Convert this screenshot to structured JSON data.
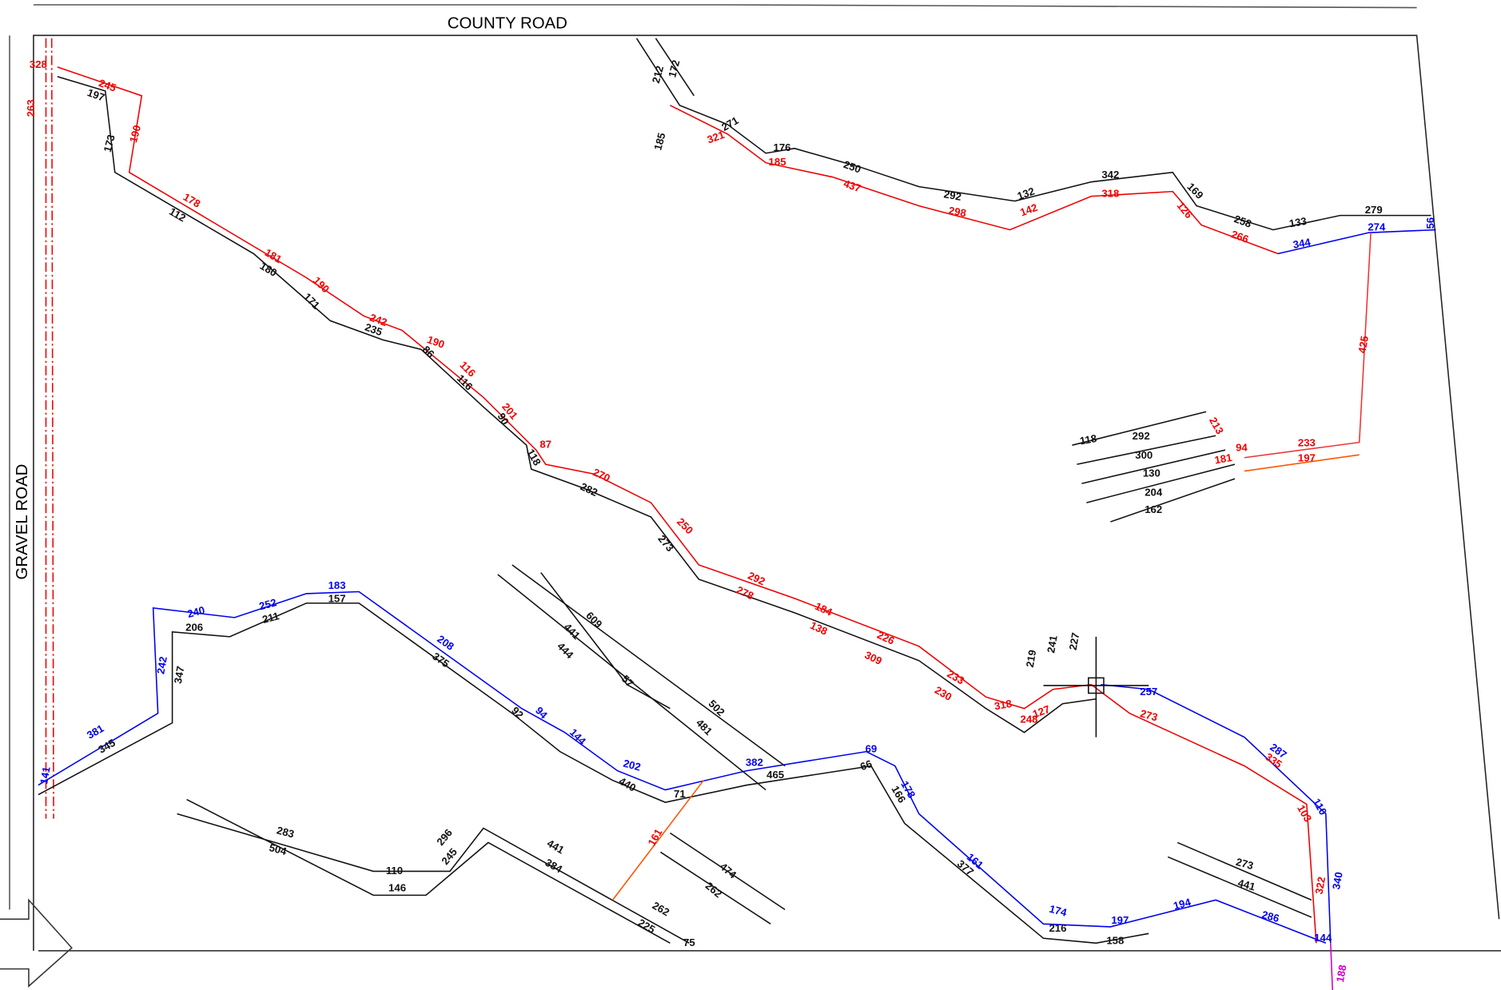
{
  "roads": {
    "county": "COUNTY ROAD",
    "gravel": "GRAVEL ROAD"
  },
  "labels": {
    "black": [
      "197",
      "173",
      "112",
      "180",
      "171",
      "235",
      "86",
      "116",
      "90",
      "118",
      "282",
      "273",
      "206",
      "211",
      "157",
      "347",
      "345",
      "375",
      "92",
      "440",
      "71",
      "465",
      "66",
      "166",
      "377",
      "216",
      "158",
      "283",
      "504",
      "110",
      "146",
      "296",
      "245",
      "441",
      "384",
      "262",
      "225",
      "75",
      "474",
      "262",
      "609",
      "441",
      "444",
      "57",
      "502",
      "481",
      "273",
      "441",
      "172",
      "212",
      "271",
      "176",
      "250",
      "292",
      "132",
      "342",
      "169",
      "258",
      "133",
      "279",
      "118",
      "292",
      "300",
      "130",
      "204",
      "162",
      "219",
      "241",
      "227",
      "185"
    ],
    "red": [
      "245",
      "190",
      "178",
      "181",
      "190",
      "242",
      "190",
      "116",
      "201",
      "87",
      "270",
      "250",
      "292",
      "278",
      "184",
      "138",
      "226",
      "309",
      "233",
      "230",
      "318",
      "248",
      "127",
      "273",
      "335",
      "103",
      "322",
      "425",
      "233",
      "197",
      "213",
      "94",
      "161",
      "321",
      "185",
      "437",
      "298",
      "142",
      "318",
      "126",
      "266",
      "181",
      "263",
      "328"
    ],
    "blue": [
      "240",
      "252",
      "183",
      "208",
      "94",
      "144",
      "202",
      "382",
      "69",
      "178",
      "161",
      "174",
      "197",
      "194",
      "286",
      "381",
      "242",
      "141",
      "257",
      "287",
      "110",
      "340",
      "144",
      "344",
      "274",
      "56"
    ],
    "magenta": [
      "188"
    ]
  }
}
